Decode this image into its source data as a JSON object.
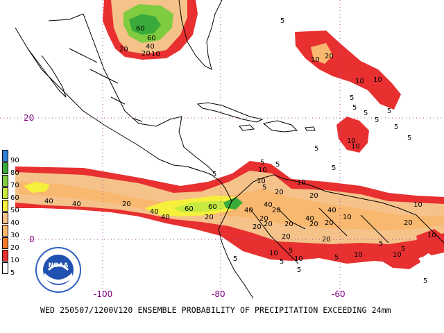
{
  "caption": "WED 250507/1200V120  ENSEMBLE PROBABILITY OF PRECIPITATION EXCEEDING 24mm",
  "logo_text": "NOAA",
  "legend": {
    "levels": [
      "90",
      "80",
      "70",
      "60",
      "50",
      "40",
      "30",
      "20",
      "10",
      "5"
    ],
    "colors": [
      "#2f7fd8",
      "#3aaa3a",
      "#80cc40",
      "#c8ea40",
      "#f6f03c",
      "#f5c28a",
      "#f9b870",
      "#f07a2a",
      "#e83030",
      "#ffffff"
    ]
  },
  "axes": {
    "lat_labels": [
      "20",
      "0"
    ],
    "lon_labels": [
      "-100",
      "-80",
      "-60"
    ]
  },
  "contour_labels": {
    "l1": "60",
    "l2": "60",
    "l3": "20",
    "l4": "40",
    "l5": "20",
    "l6": "10",
    "l7": "5",
    "l8": "10",
    "l9": "20",
    "l10": "10",
    "l11": "10",
    "l12": "5",
    "l13": "5",
    "l14": "5",
    "l15": "5",
    "l16": "5",
    "l17": "10",
    "l18": "10",
    "l19": "5",
    "l20": "5",
    "l21": "40",
    "l22": "40",
    "l23": "20",
    "l24": "40",
    "l25": "40",
    "l26": "60",
    "l27": "60",
    "l28": "20",
    "l29": "40",
    "l30": "20",
    "l31": "20",
    "l32": "20",
    "l33": "40",
    "l34": "20",
    "l35": "20",
    "l36": "20",
    "l37": "20",
    "l38": "40",
    "l39": "20",
    "l40": "10",
    "l41": "10",
    "l42": "10",
    "l43": "20",
    "l44": "5",
    "l45": "5",
    "l46": "5",
    "l47": "10",
    "l48": "10",
    "l49": "5",
    "l50": "5",
    "l51": "10",
    "l52": "5",
    "l53": "5",
    "l54": "5",
    "l55": "10",
    "l56": "20",
    "l57": "10",
    "l58": "5",
    "l59": "5",
    "l60": "10",
    "l61": "5",
    "l62": "5",
    "l63": "20",
    "l64": "40",
    "l65": "20",
    "l66": "10",
    "l67": "5",
    "l68": "5"
  }
}
